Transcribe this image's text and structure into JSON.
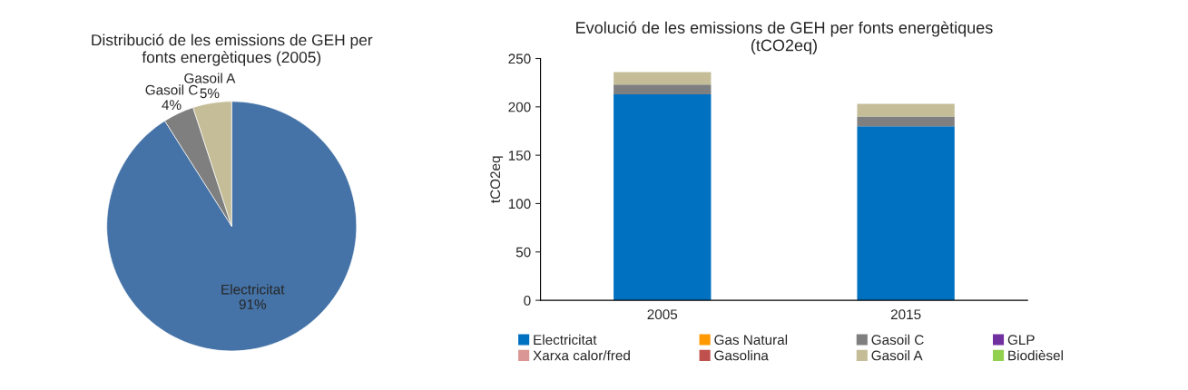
{
  "chart_data": [
    {
      "type": "pie",
      "title": "Distribució de les emissions de GEH per\nfonts energètiques (2005)",
      "categories": [
        "Electricitat",
        "Gasoil C",
        "Gasoil A"
      ],
      "values": [
        91,
        4,
        5
      ],
      "colors": [
        "#4573a7",
        "#7f7f7f",
        "#c4bd97"
      ],
      "value_labels": [
        "91%",
        "4%",
        "5%"
      ],
      "legend": false
    },
    {
      "type": "bar",
      "title": "Evolució de les emissions de GEH per fonts energètiques\n(tCO2eq)",
      "ylabel": "tCO2eq",
      "categories": [
        "2005",
        "2015"
      ],
      "stacked": true,
      "ylim": [
        0,
        250
      ],
      "yticks": [
        0,
        50,
        100,
        150,
        200,
        250
      ],
      "grid": false,
      "legend": "bottom",
      "series": [
        {
          "name": "Electricitat",
          "color": "#0070c0",
          "values": [
            213,
            180
          ]
        },
        {
          "name": "Gas Natural",
          "color": "#ff9900",
          "values": [
            null,
            null
          ]
        },
        {
          "name": "Gasoil C",
          "color": "#7f7f7f",
          "values": [
            10,
            10
          ]
        },
        {
          "name": "GLP",
          "color": "#7030a0",
          "values": [
            null,
            null
          ]
        },
        {
          "name": "Xarxa calor/fred",
          "color": "#da9694",
          "values": [
            null,
            null
          ]
        },
        {
          "name": "Gasolina",
          "color": "#c0504d",
          "values": [
            null,
            null
          ]
        },
        {
          "name": "Gasoil A",
          "color": "#c4bd97",
          "values": [
            13,
            13
          ]
        },
        {
          "name": "Biodièsel",
          "color": "#92d050",
          "values": [
            null,
            null
          ]
        }
      ]
    }
  ]
}
